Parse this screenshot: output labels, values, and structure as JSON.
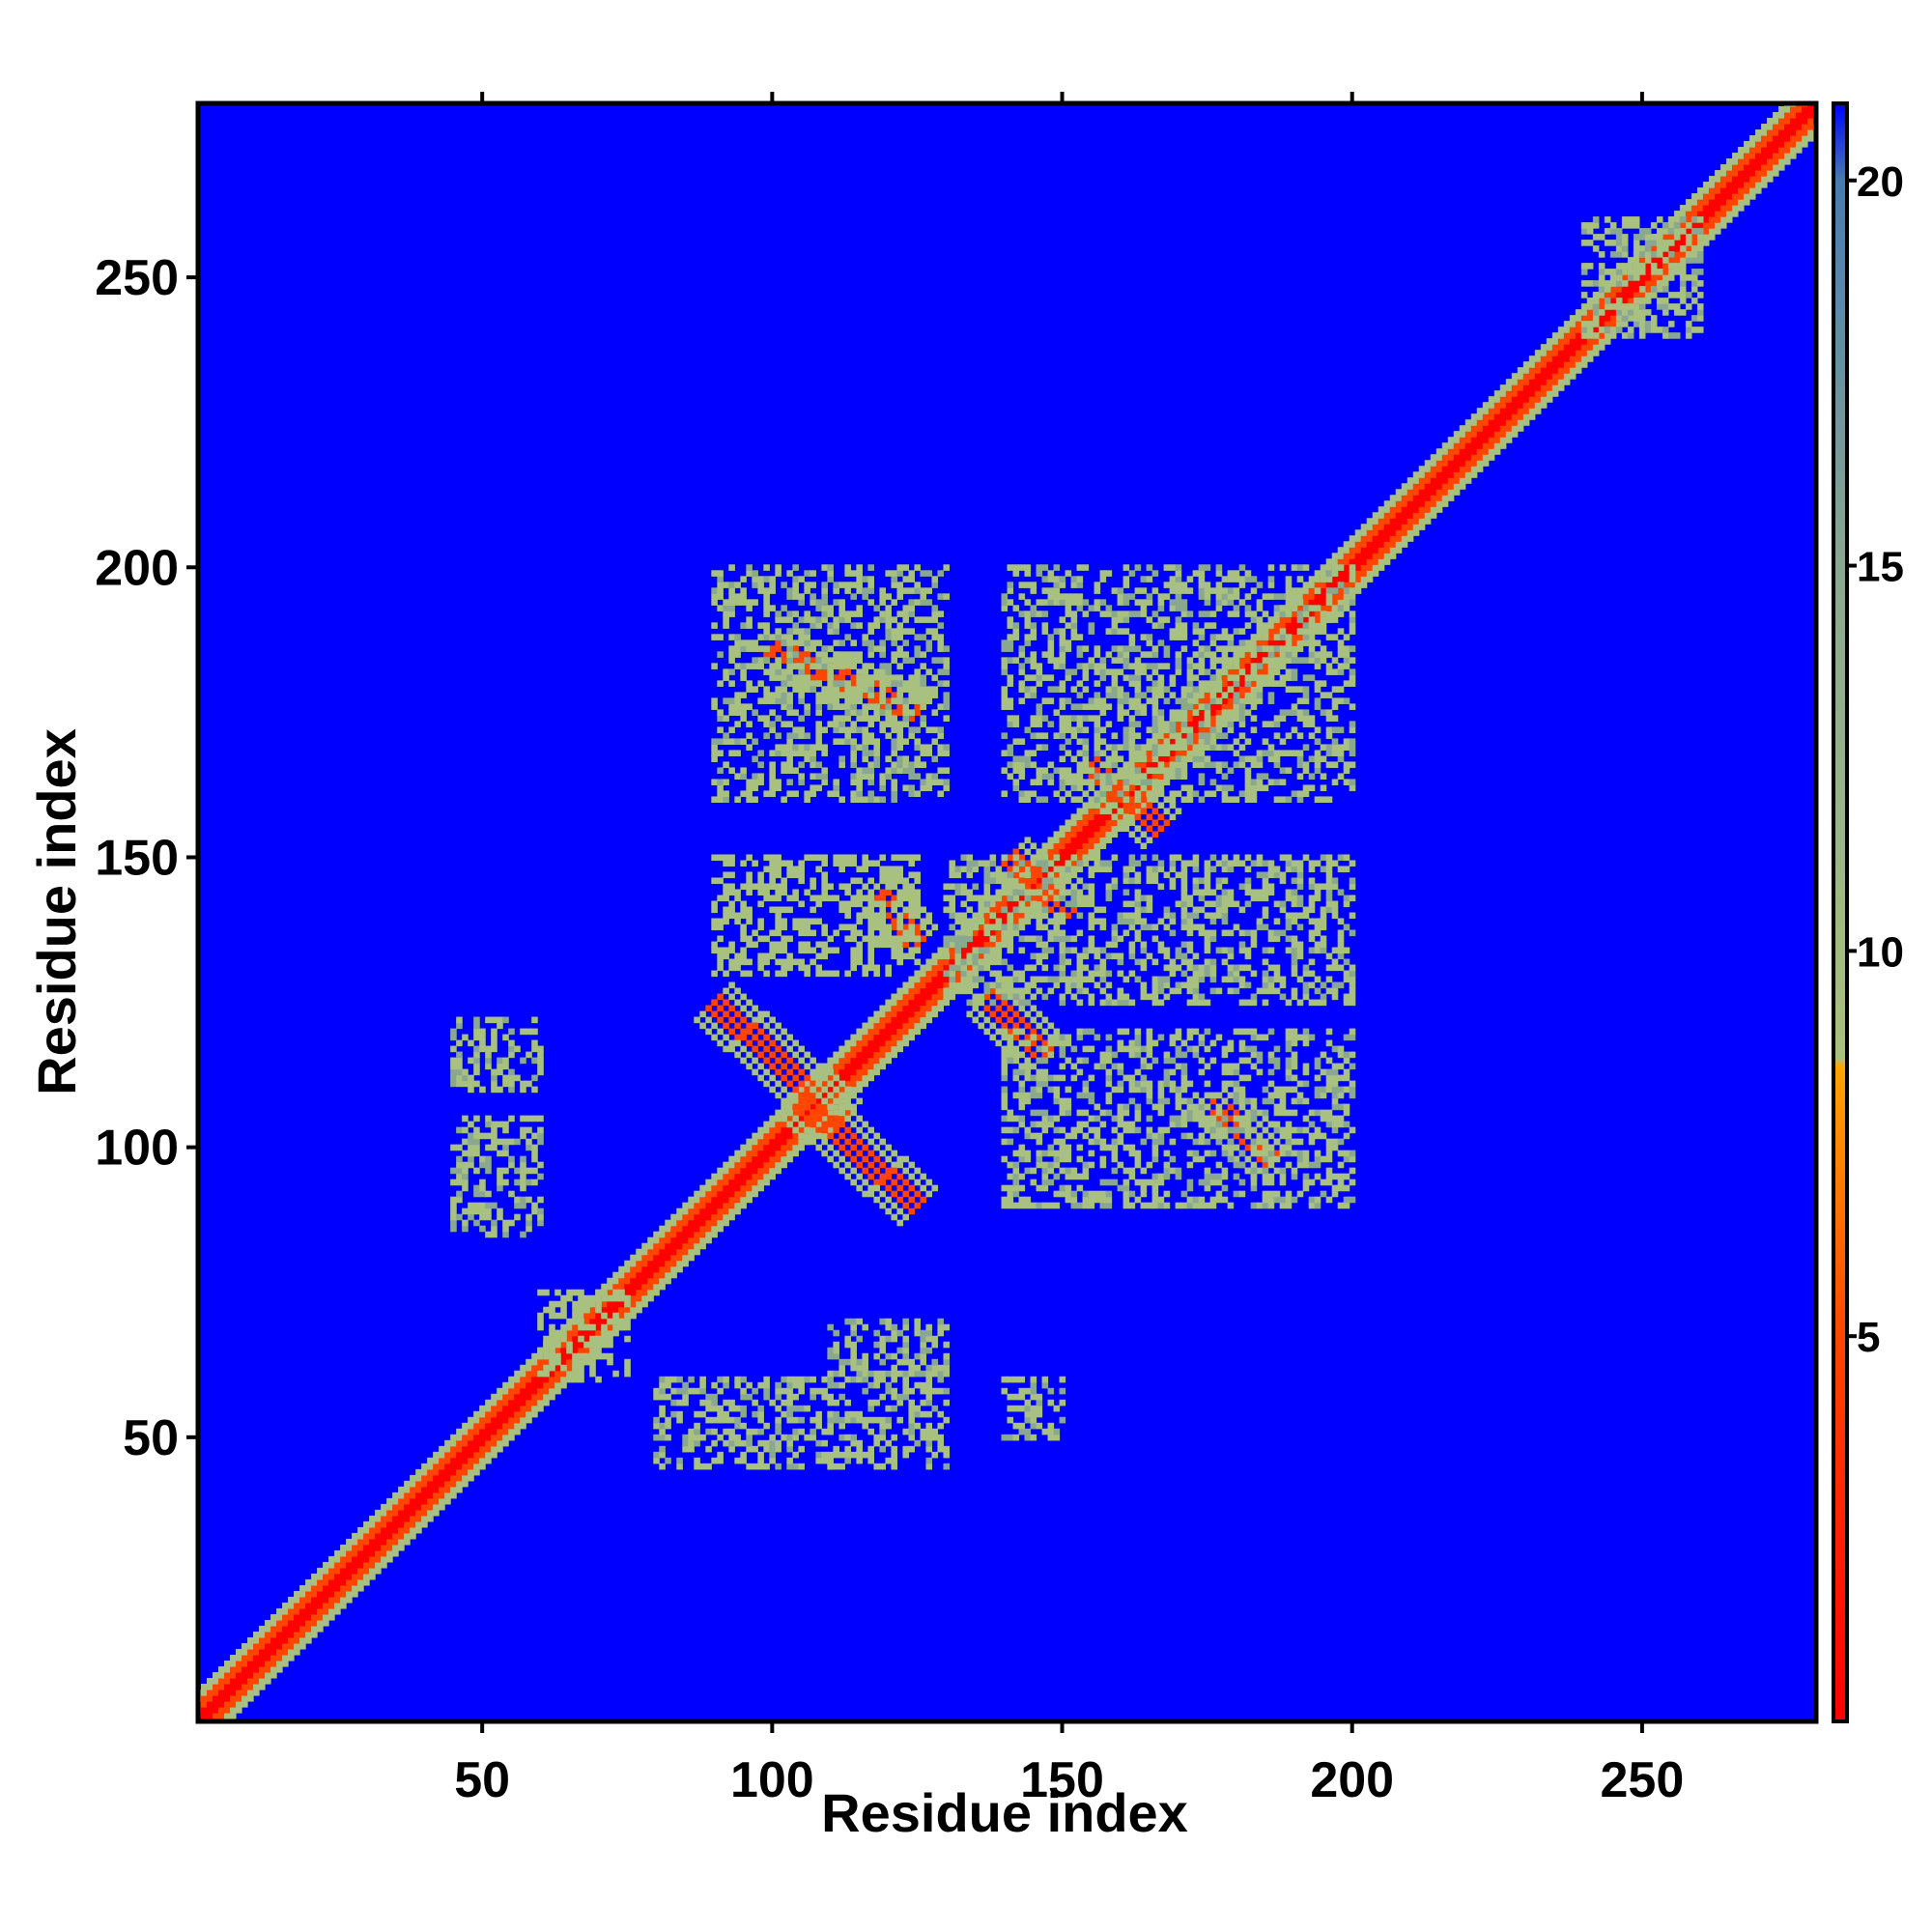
{
  "chart_data": {
    "type": "heatmap",
    "title": "",
    "xlabel": "Residue index",
    "ylabel": "Residue index",
    "xlim": [
      1,
      280
    ],
    "ylim": [
      1,
      280
    ],
    "x_ticks": [
      50,
      100,
      150,
      200,
      250
    ],
    "y_ticks": [
      50,
      100,
      150,
      200,
      250
    ],
    "colorbar": {
      "range": [
        0,
        21
      ],
      "ticks": [
        5,
        10,
        15,
        20
      ],
      "stops": [
        {
          "value": 0,
          "color": "#ff0000"
        },
        {
          "value": 5,
          "color": "#ff4500"
        },
        {
          "value": 8.5,
          "color": "#ffa500"
        },
        {
          "value": 8.6,
          "color": "#a8c080"
        },
        {
          "value": 15,
          "color": "#8aa890"
        },
        {
          "value": 20,
          "color": "#4a7ab0"
        },
        {
          "value": 21,
          "color": "#0000ff"
        }
      ]
    },
    "background_color": "#0000ff",
    "contact_regions": [
      {
        "x": [
          1,
          280
        ],
        "y": [
          1,
          280
        ],
        "kind": "diagonal",
        "value": 3
      },
      {
        "x": [
          100,
          125
        ],
        "y": [
          186,
          175
        ],
        "kind": "anti-diagonal",
        "value": 7
      },
      {
        "x": [
          118,
          125
        ],
        "y": [
          145,
          135
        ],
        "kind": "anti-diagonal",
        "value": 7
      },
      {
        "x": [
          90,
          112
        ],
        "y": [
          125,
          105
        ],
        "kind": "anti-diagonal",
        "value": 7
      },
      {
        "x": [
          105,
          125
        ],
        "y": [
          108,
          90
        ],
        "kind": "anti-diagonal",
        "value": 7
      },
      {
        "x": [
          137,
          147
        ],
        "y": [
          126,
          116
        ],
        "kind": "anti-diagonal",
        "value": 7
      },
      {
        "x": [
          141,
          151
        ],
        "y": [
          150,
          140
        ],
        "kind": "anti-diagonal",
        "value": 7
      },
      {
        "x": [
          155,
          167
        ],
        "y": [
          166,
          155
        ],
        "kind": "anti-diagonal",
        "value": 7
      },
      {
        "x": [
          176,
          186
        ],
        "y": [
          108,
          98
        ],
        "kind": "anti-diagonal",
        "value": 7
      },
      {
        "x": [
          60,
          75
        ],
        "y": [
          75,
          60
        ],
        "kind": "patch",
        "value": 12
      },
      {
        "x": [
          45,
          60
        ],
        "y": [
          122,
          110
        ],
        "kind": "patch",
        "value": 13
      },
      {
        "x": [
          45,
          60
        ],
        "y": [
          105,
          85
        ],
        "kind": "patch",
        "value": 13
      },
      {
        "x": [
          90,
          125
        ],
        "y": [
          150,
          130
        ],
        "kind": "patch",
        "value": 12
      },
      {
        "x": [
          90,
          130
        ],
        "y": [
          200,
          160
        ],
        "kind": "patch",
        "value": 13
      },
      {
        "x": [
          140,
          200
        ],
        "y": [
          200,
          160
        ],
        "kind": "patch",
        "value": 13
      },
      {
        "x": [
          130,
          200
        ],
        "y": [
          150,
          125
        ],
        "kind": "patch",
        "value": 13
      },
      {
        "x": [
          140,
          200
        ],
        "y": [
          120,
          90
        ],
        "kind": "patch",
        "value": 13
      },
      {
        "x": [
          80,
          110
        ],
        "y": [
          60,
          45
        ],
        "kind": "patch",
        "value": 14
      },
      {
        "x": [
          110,
          130
        ],
        "y": [
          70,
          45
        ],
        "kind": "patch",
        "value": 14
      },
      {
        "x": [
          140,
          150
        ],
        "y": [
          60,
          50
        ],
        "kind": "patch",
        "value": 15
      },
      {
        "x": [
          240,
          260
        ],
        "y": [
          260,
          240
        ],
        "kind": "patch",
        "value": 13
      }
    ]
  }
}
